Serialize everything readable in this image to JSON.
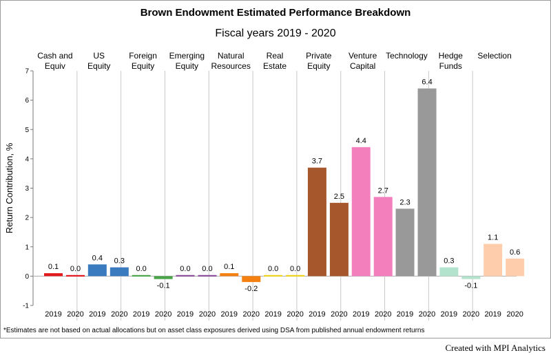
{
  "footnote": "*Estimates are not based on actual allocations but on asset class exposures derived using DSA from published annual endowment returns",
  "credit": "Created with MPI Analytics",
  "chart_data": {
    "type": "bar",
    "title": "Brown Endowment Estimated Performance Breakdown",
    "subtitle": "Fiscal years 2019 - 2020",
    "ylabel": "Return Contribution, %",
    "xlabel": "",
    "ylim": [
      -1,
      7
    ],
    "yticks": [
      "7",
      "6",
      "5",
      "4",
      "3",
      "2",
      "1",
      "0",
      "-1"
    ],
    "panels": [
      {
        "name": "Cash and Equiv",
        "lines": [
          "Cash and",
          "Equiv"
        ],
        "color": "#e31a1c",
        "bars": [
          {
            "x": "2019",
            "value": 0.1,
            "label": "0.1"
          },
          {
            "x": "2020",
            "value": 0.0,
            "label": "0.0"
          }
        ]
      },
      {
        "name": "US Equity",
        "lines": [
          "US",
          "Equity"
        ],
        "color": "#3a7bbf",
        "bars": [
          {
            "x": "2019",
            "value": 0.4,
            "label": "0.4"
          },
          {
            "x": "2020",
            "value": 0.3,
            "label": "0.3"
          }
        ]
      },
      {
        "name": "Foreign Equity",
        "lines": [
          "Foreign",
          "Equity"
        ],
        "color": "#4aa54a",
        "bars": [
          {
            "x": "2019",
            "value": 0.0,
            "label": "0.0"
          },
          {
            "x": "2020",
            "value": -0.1,
            "label": "-0.1"
          }
        ]
      },
      {
        "name": "Emerging Equity",
        "lines": [
          "Emerging",
          "Equity"
        ],
        "color": "#8d4d9e",
        "bars": [
          {
            "x": "2019",
            "value": 0.0,
            "label": "0.0"
          },
          {
            "x": "2020",
            "value": 0.0,
            "label": "0.0"
          }
        ]
      },
      {
        "name": "Natural Resources",
        "lines": [
          "Natural",
          "Resources"
        ],
        "color": "#f57f0f",
        "bars": [
          {
            "x": "2019",
            "value": 0.1,
            "label": "0.1"
          },
          {
            "x": "2020",
            "value": -0.2,
            "label": "-0.2"
          }
        ]
      },
      {
        "name": "Real Estate",
        "lines": [
          "Real",
          "Estate"
        ],
        "color": "#f0d21c",
        "bars": [
          {
            "x": "2019",
            "value": 0.0,
            "label": "0.0"
          },
          {
            "x": "2020",
            "value": 0.0,
            "label": "0.0"
          }
        ]
      },
      {
        "name": "Private Equity",
        "lines": [
          "Private",
          "Equity"
        ],
        "color": "#a6572b",
        "bars": [
          {
            "x": "2019",
            "value": 3.7,
            "label": "3.7"
          },
          {
            "x": "2020",
            "value": 2.5,
            "label": "2.5"
          }
        ]
      },
      {
        "name": "Venture Capital",
        "lines": [
          "Venture",
          "Capital"
        ],
        "color": "#f47fbd",
        "bars": [
          {
            "x": "2019",
            "value": 4.4,
            "label": "4.4"
          },
          {
            "x": "2020",
            "value": 2.7,
            "label": "2.7"
          }
        ]
      },
      {
        "name": "Technology",
        "lines": [
          "Technology"
        ],
        "color": "#999999",
        "bars": [
          {
            "x": "2019",
            "value": 2.3,
            "label": "2.3"
          },
          {
            "x": "2020",
            "value": 6.4,
            "label": "6.4"
          }
        ]
      },
      {
        "name": "Hedge Funds",
        "lines": [
          "Hedge",
          "Funds"
        ],
        "color": "#b3e2cd",
        "bars": [
          {
            "x": "2019",
            "value": 0.3,
            "label": "0.3"
          },
          {
            "x": "2020",
            "value": -0.1,
            "label": "-0.1"
          }
        ]
      },
      {
        "name": "Selection",
        "lines": [
          "Selection"
        ],
        "color": "#fdcdac",
        "bars": [
          {
            "x": "2019",
            "value": 1.1,
            "label": "1.1"
          },
          {
            "x": "2020",
            "value": 0.6,
            "label": "0.6"
          }
        ]
      }
    ]
  }
}
